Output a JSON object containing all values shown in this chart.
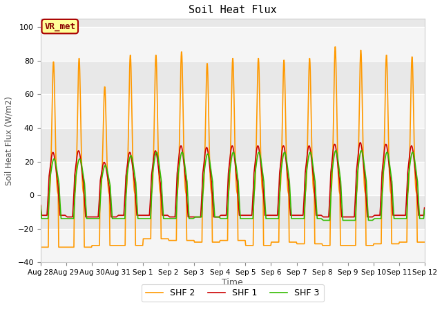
{
  "title": "Soil Heat Flux",
  "xlabel": "Time",
  "ylabel": "Soil Heat Flux (W/m2)",
  "ylim": [
    -40,
    105
  ],
  "yticks": [
    -40,
    -20,
    0,
    20,
    40,
    60,
    80,
    100
  ],
  "series_colors": [
    "#cc0000",
    "#ff9900",
    "#33bb00"
  ],
  "series_labels": [
    "SHF 1",
    "SHF 2",
    "SHF 3"
  ],
  "series_linewidths": [
    1.2,
    1.2,
    1.2
  ],
  "fig_bg_color": "#ffffff",
  "plot_bg_color": "#e8e8e8",
  "grid_color": "#ffffff",
  "legend_label": "VR_met",
  "legend_box_color": "#ffff99",
  "legend_box_edge": "#aa0000",
  "n_days": 15,
  "dt_hours": 0.25,
  "day_labels": [
    "Aug 28",
    "Aug 29",
    "Aug 30",
    "Aug 31",
    "Sep 1",
    "Sep 2",
    "Sep 3",
    "Sep 4",
    "Sep 5",
    "Sep 6",
    "Sep 7",
    "Sep 8",
    "Sep 9",
    "Sep 10",
    "Sep 11",
    "Sep 12"
  ]
}
